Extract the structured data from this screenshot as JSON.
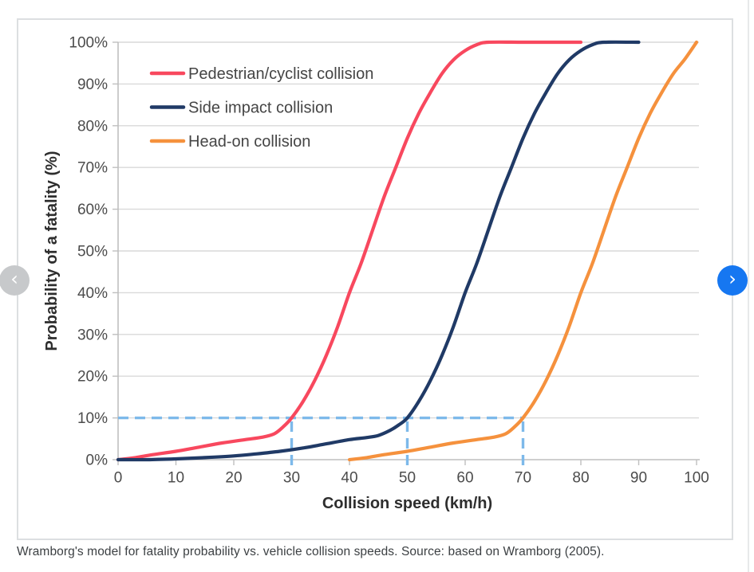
{
  "caption": "Wramborg's model for fatality probability vs. vehicle collision speeds. Source: based on Wramborg (2005).",
  "carousel": {
    "prev_icon": "‹",
    "next_icon": "›",
    "prev_button_color": "#c7c9cb",
    "next_button_color": "#1677f1"
  },
  "chart_data": {
    "type": "line",
    "title": "",
    "x_axis": {
      "title": "Collision speed (km/h)",
      "min": 0,
      "max": 100,
      "tick_values": [
        0,
        10,
        20,
        30,
        40,
        50,
        60,
        70,
        80,
        90,
        100
      ],
      "tick_labels": [
        "0",
        "10",
        "20",
        "30",
        "40",
        "50",
        "60",
        "70",
        "80",
        "90",
        "100"
      ]
    },
    "y_axis": {
      "title": "Probability of a fatality (%)",
      "min": 0,
      "max": 100,
      "tick_values": [
        0,
        10,
        20,
        30,
        40,
        50,
        60,
        70,
        80,
        90,
        100
      ],
      "tick_labels": [
        "0%",
        "10%",
        "20%",
        "30%",
        "40%",
        "50%",
        "60%",
        "70%",
        "80%",
        "90%",
        "100%"
      ]
    },
    "grid": "horizontal",
    "legend_position": "top-left-inside",
    "gridline_color": "#d9d9d9",
    "axis_line_color": "#bfbfbf",
    "series": [
      {
        "name": "Pedestrian/cyclist collision",
        "color": "#f8485e",
        "points": [
          [
            0,
            0
          ],
          [
            3,
            0.5
          ],
          [
            6,
            1.2
          ],
          [
            10,
            2
          ],
          [
            14,
            3
          ],
          [
            18,
            4
          ],
          [
            22,
            4.8
          ],
          [
            25,
            5.4
          ],
          [
            27,
            6.2
          ],
          [
            28.5,
            7.8
          ],
          [
            30,
            10
          ],
          [
            32,
            14
          ],
          [
            34,
            19
          ],
          [
            36,
            25
          ],
          [
            38,
            32
          ],
          [
            40,
            40
          ],
          [
            42,
            47
          ],
          [
            44,
            55
          ],
          [
            46,
            63
          ],
          [
            48,
            70
          ],
          [
            50,
            77
          ],
          [
            52,
            83
          ],
          [
            54,
            88
          ],
          [
            56,
            92.5
          ],
          [
            58,
            95.8
          ],
          [
            60,
            98
          ],
          [
            62,
            99.4
          ],
          [
            64,
            100
          ],
          [
            70,
            100
          ],
          [
            75,
            100
          ],
          [
            80,
            100
          ]
        ]
      },
      {
        "name": "Side impact collision",
        "color": "#203a66",
        "points": [
          [
            0,
            0
          ],
          [
            5,
            0
          ],
          [
            10,
            0.2
          ],
          [
            15,
            0.5
          ],
          [
            20,
            0.9
          ],
          [
            24,
            1.4
          ],
          [
            28,
            2
          ],
          [
            32,
            2.8
          ],
          [
            36,
            3.8
          ],
          [
            40,
            4.8
          ],
          [
            43,
            5.3
          ],
          [
            45,
            5.8
          ],
          [
            47,
            7
          ],
          [
            48.5,
            8.3
          ],
          [
            50,
            10
          ],
          [
            52,
            14
          ],
          [
            54,
            19
          ],
          [
            56,
            25
          ],
          [
            58,
            32
          ],
          [
            60,
            40
          ],
          [
            62,
            47
          ],
          [
            64,
            55
          ],
          [
            66,
            63
          ],
          [
            68,
            70
          ],
          [
            70,
            77
          ],
          [
            72,
            83
          ],
          [
            74,
            88
          ],
          [
            76,
            92.5
          ],
          [
            78,
            95.8
          ],
          [
            80,
            98
          ],
          [
            82,
            99.4
          ],
          [
            84,
            100
          ],
          [
            90,
            100
          ]
        ]
      },
      {
        "name": "Head-on collision",
        "color": "#f5913d",
        "points": [
          [
            40,
            0
          ],
          [
            43,
            0.5
          ],
          [
            46,
            1.2
          ],
          [
            50,
            2
          ],
          [
            54,
            3
          ],
          [
            58,
            4
          ],
          [
            62,
            4.8
          ],
          [
            65,
            5.4
          ],
          [
            67,
            6.2
          ],
          [
            68.5,
            7.8
          ],
          [
            70,
            10
          ],
          [
            72,
            14
          ],
          [
            74,
            19
          ],
          [
            76,
            25
          ],
          [
            78,
            32
          ],
          [
            80,
            40
          ],
          [
            82,
            47
          ],
          [
            84,
            55
          ],
          [
            86,
            63
          ],
          [
            88,
            70
          ],
          [
            90,
            77
          ],
          [
            92,
            83
          ],
          [
            94,
            88
          ],
          [
            96,
            92.5
          ],
          [
            98,
            96
          ],
          [
            100,
            100
          ]
        ]
      }
    ],
    "reference_lines": {
      "color": "#7db9ea",
      "style": "dashed",
      "horizontal": {
        "y": 10,
        "from_x": 0,
        "to_x": 70
      },
      "vertical": [
        {
          "x": 30,
          "from_y": 0,
          "to_y": 10
        },
        {
          "x": 50,
          "from_y": 0,
          "to_y": 10
        },
        {
          "x": 70,
          "from_y": 0,
          "to_y": 10
        }
      ]
    }
  }
}
